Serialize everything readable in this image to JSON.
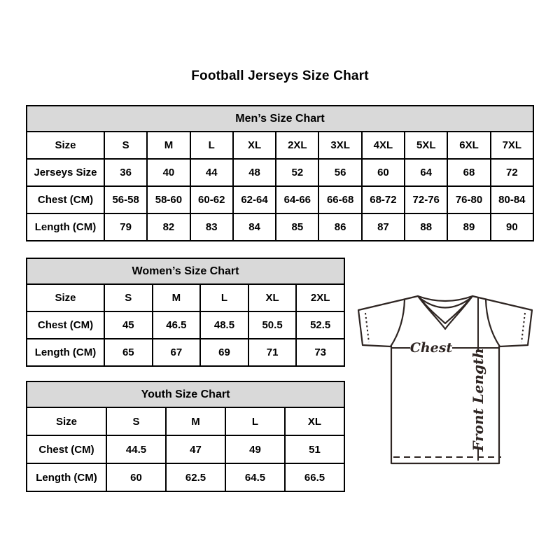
{
  "title": "Football Jerseys Size Chart",
  "colors": {
    "header_bg": "#d9d9d9",
    "border": "#000000",
    "sketch_line": "#2e2522"
  },
  "tables": [
    {
      "id": "mens",
      "title": "Men’s Size Chart",
      "rows": [
        [
          "Size",
          "S",
          "M",
          "L",
          "XL",
          "2XL",
          "3XL",
          "4XL",
          "5XL",
          "6XL",
          "7XL"
        ],
        [
          "Jerseys Size",
          "36",
          "40",
          "44",
          "48",
          "52",
          "56",
          "60",
          "64",
          "68",
          "72"
        ],
        [
          "Chest (CM)",
          "56-58",
          "58-60",
          "60-62",
          "62-64",
          "64-66",
          "66-68",
          "68-72",
          "72-76",
          "76-80",
          "80-84"
        ],
        [
          "Length (CM)",
          "79",
          "82",
          "83",
          "84",
          "85",
          "86",
          "87",
          "88",
          "89",
          "90"
        ]
      ]
    },
    {
      "id": "womens",
      "title": "Women’s Size Chart",
      "rows": [
        [
          "Size",
          "S",
          "M",
          "L",
          "XL",
          "2XL"
        ],
        [
          "Chest (CM)",
          "45",
          "46.5",
          "48.5",
          "50.5",
          "52.5"
        ],
        [
          "Length (CM)",
          "65",
          "67",
          "69",
          "71",
          "73"
        ]
      ]
    },
    {
      "id": "youth",
      "title": "Youth Size Chart",
      "rows": [
        [
          "Size",
          "S",
          "M",
          "L",
          "XL"
        ],
        [
          "Chest (CM)",
          "44.5",
          "47",
          "49",
          "51"
        ],
        [
          "Length (CM)",
          "60",
          "62.5",
          "64.5",
          "66.5"
        ]
      ]
    }
  ],
  "diagram": {
    "chest_label": "Chest",
    "front_length_label": "Front Length"
  }
}
